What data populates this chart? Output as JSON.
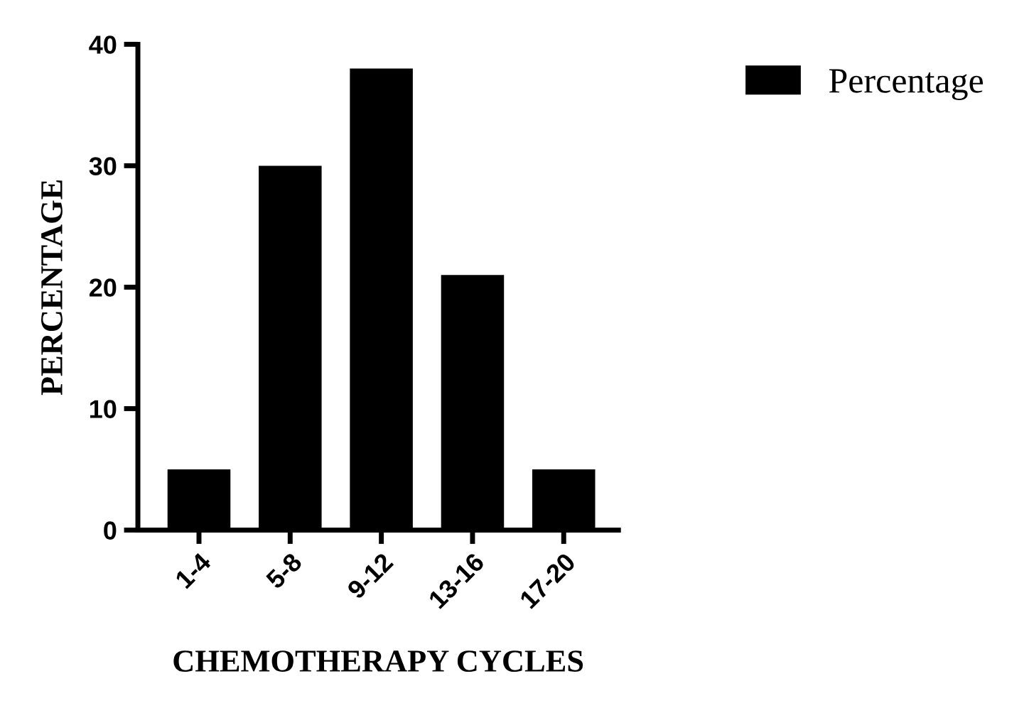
{
  "chart_data": {
    "type": "bar",
    "xlabel": "CHEMOTHERAPY CYCLES",
    "ylabel": "PERCENTAGE",
    "categories": [
      "1-4",
      "5-8",
      "9-12",
      "13-16",
      "17-20"
    ],
    "series": [
      {
        "name": "Percentage",
        "color": "#000000",
        "values": [
          5,
          30,
          38,
          21,
          5
        ]
      }
    ],
    "ylim": [
      0,
      40
    ],
    "yticks": [
      0,
      10,
      20,
      30,
      40
    ],
    "grid": false,
    "legend": "top right"
  }
}
